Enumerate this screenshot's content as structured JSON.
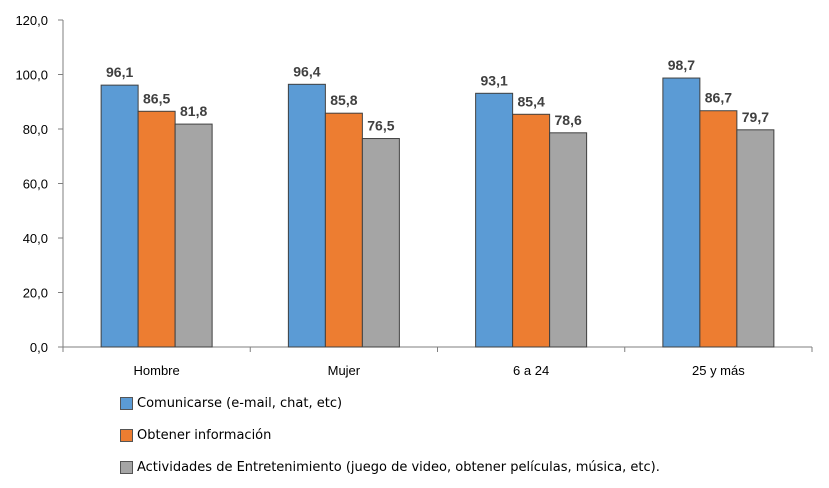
{
  "chart_data": {
    "type": "bar",
    "categories": [
      "Hombre",
      "Mujer",
      "6 a 24",
      "25 y más"
    ],
    "series": [
      {
        "name": "Comunicarse (e-mail, chat, etc)",
        "values": [
          96.1,
          96.4,
          93.1,
          98.7
        ],
        "color": "#5b9bd5"
      },
      {
        "name": "Obtener información",
        "values": [
          86.5,
          85.8,
          85.4,
          86.7
        ],
        "color": "#ed7d31"
      },
      {
        "name": "Actividades de Entretenimiento (juego de video, obtener películas, música, etc).",
        "values": [
          81.8,
          76.5,
          78.6,
          79.7
        ],
        "color": "#a5a5a5"
      }
    ],
    "value_labels": [
      [
        "96,1",
        "96,4",
        "93,1",
        "98,7"
      ],
      [
        "86,5",
        "85,8",
        "85,4",
        "86,7"
      ],
      [
        "81,8",
        "76,5",
        "78,6",
        "79,7"
      ]
    ],
    "ylim": [
      0,
      120
    ],
    "yticks": [
      0,
      20,
      40,
      60,
      80,
      100,
      120
    ],
    "ytick_labels": [
      "0,0",
      "20,0",
      "40,0",
      "60,0",
      "80,0",
      "100,0",
      "120,0"
    ],
    "grid": false,
    "legend_position": "bottom-left"
  }
}
